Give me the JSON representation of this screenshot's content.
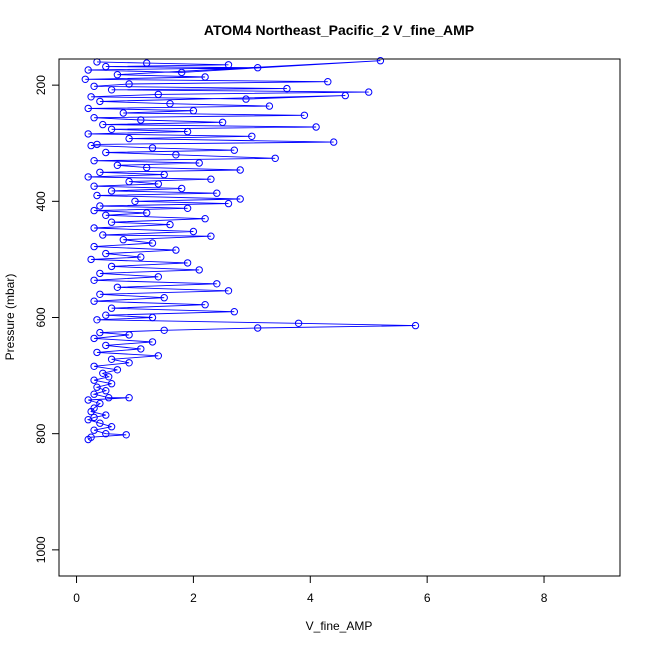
{
  "chart_data": {
    "type": "scatter",
    "title": "ATOM4 Northeast_Pacific_2 V_fine_AMP",
    "xlabel": "V_fine_AMP",
    "ylabel": "Pressure (mbar)",
    "xlim": [
      -0.3,
      9.3
    ],
    "ylim": [
      1045,
      155
    ],
    "y_reversed": true,
    "xticks": [
      0,
      2,
      4,
      6,
      8
    ],
    "xtick_labels": [
      "0",
      "2",
      "4",
      "6",
      "8"
    ],
    "yticks": [
      200,
      400,
      600,
      800,
      1000
    ],
    "ytick_labels": [
      "200",
      "400",
      "600",
      "800",
      "1000"
    ],
    "grid": false,
    "marker": "open-circle",
    "line": true,
    "series_color": "#0000ff",
    "series": [
      {
        "points": [
          [
            0.35,
            160
          ],
          [
            1.2,
            162
          ],
          [
            2.6,
            165
          ],
          [
            0.5,
            168
          ],
          [
            3.1,
            170
          ],
          [
            0.2,
            174
          ],
          [
            1.8,
            178
          ],
          [
            5.2,
            158
          ],
          [
            0.7,
            182
          ],
          [
            2.2,
            186
          ],
          [
            0.15,
            190
          ],
          [
            4.3,
            194
          ],
          [
            0.9,
            198
          ],
          [
            0.3,
            202
          ],
          [
            3.6,
            206
          ],
          [
            0.6,
            208
          ],
          [
            5.0,
            212
          ],
          [
            1.4,
            216
          ],
          [
            0.25,
            220
          ],
          [
            2.9,
            224
          ],
          [
            4.6,
            218
          ],
          [
            0.4,
            228
          ],
          [
            1.6,
            232
          ],
          [
            3.3,
            236
          ],
          [
            0.2,
            240
          ],
          [
            2.0,
            244
          ],
          [
            0.8,
            248
          ],
          [
            3.9,
            252
          ],
          [
            0.3,
            256
          ],
          [
            1.1,
            260
          ],
          [
            2.5,
            264
          ],
          [
            0.45,
            268
          ],
          [
            4.1,
            272
          ],
          [
            0.6,
            276
          ],
          [
            1.9,
            280
          ],
          [
            0.2,
            284
          ],
          [
            3.0,
            288
          ],
          [
            0.9,
            292
          ],
          [
            4.4,
            298
          ],
          [
            0.35,
            302
          ],
          [
            0.25,
            304
          ],
          [
            1.3,
            308
          ],
          [
            2.7,
            312
          ],
          [
            0.5,
            316
          ],
          [
            1.7,
            320
          ],
          [
            3.4,
            326
          ],
          [
            0.3,
            330
          ],
          [
            2.1,
            334
          ],
          [
            0.7,
            338
          ],
          [
            1.2,
            342
          ],
          [
            2.8,
            346
          ],
          [
            0.4,
            350
          ],
          [
            1.5,
            354
          ],
          [
            0.2,
            358
          ],
          [
            2.3,
            362
          ],
          [
            0.9,
            366
          ],
          [
            1.4,
            370
          ],
          [
            0.3,
            374
          ],
          [
            1.8,
            378
          ],
          [
            0.6,
            382
          ],
          [
            2.4,
            386
          ],
          [
            0.35,
            390
          ],
          [
            2.8,
            396
          ],
          [
            1.0,
            400
          ],
          [
            2.6,
            404
          ],
          [
            0.4,
            408
          ],
          [
            1.9,
            412
          ],
          [
            0.3,
            416
          ],
          [
            1.2,
            420
          ],
          [
            0.5,
            424
          ],
          [
            2.2,
            430
          ],
          [
            0.6,
            436
          ],
          [
            1.6,
            440
          ],
          [
            0.3,
            446
          ],
          [
            2.0,
            452
          ],
          [
            0.45,
            458
          ],
          [
            2.3,
            460
          ],
          [
            0.8,
            466
          ],
          [
            1.3,
            472
          ],
          [
            0.3,
            478
          ],
          [
            1.7,
            484
          ],
          [
            0.5,
            490
          ],
          [
            1.1,
            496
          ],
          [
            0.25,
            500
          ],
          [
            1.9,
            506
          ],
          [
            0.6,
            512
          ],
          [
            2.1,
            518
          ],
          [
            0.4,
            524
          ],
          [
            1.4,
            530
          ],
          [
            0.3,
            536
          ],
          [
            2.4,
            542
          ],
          [
            0.7,
            548
          ],
          [
            2.6,
            554
          ],
          [
            0.4,
            560
          ],
          [
            1.5,
            566
          ],
          [
            0.3,
            572
          ],
          [
            2.2,
            578
          ],
          [
            0.6,
            584
          ],
          [
            2.7,
            590
          ],
          [
            0.5,
            596
          ],
          [
            1.3,
            600
          ],
          [
            0.35,
            604
          ],
          [
            3.8,
            610
          ],
          [
            5.8,
            614
          ],
          [
            3.1,
            618
          ],
          [
            1.5,
            622
          ],
          [
            0.4,
            626
          ],
          [
            0.9,
            630
          ],
          [
            0.3,
            636
          ],
          [
            1.3,
            642
          ],
          [
            0.5,
            648
          ],
          [
            1.1,
            654
          ],
          [
            0.35,
            660
          ],
          [
            1.4,
            666
          ],
          [
            0.6,
            672
          ],
          [
            0.9,
            678
          ],
          [
            0.3,
            684
          ],
          [
            0.7,
            690
          ],
          [
            0.45,
            696
          ],
          [
            0.55,
            702
          ],
          [
            0.3,
            708
          ],
          [
            0.6,
            714
          ],
          [
            0.35,
            720
          ],
          [
            0.5,
            726
          ],
          [
            0.3,
            732
          ],
          [
            0.55,
            738
          ],
          [
            0.9,
            738
          ],
          [
            0.2,
            742
          ],
          [
            0.4,
            748
          ],
          [
            0.3,
            756
          ],
          [
            0.25,
            762
          ],
          [
            0.5,
            768
          ],
          [
            0.3,
            772
          ],
          [
            0.2,
            776
          ],
          [
            0.4,
            782
          ],
          [
            0.6,
            788
          ],
          [
            0.3,
            794
          ],
          [
            0.5,
            800
          ],
          [
            0.85,
            802
          ],
          [
            0.25,
            806
          ],
          [
            0.2,
            810
          ]
        ]
      }
    ]
  }
}
